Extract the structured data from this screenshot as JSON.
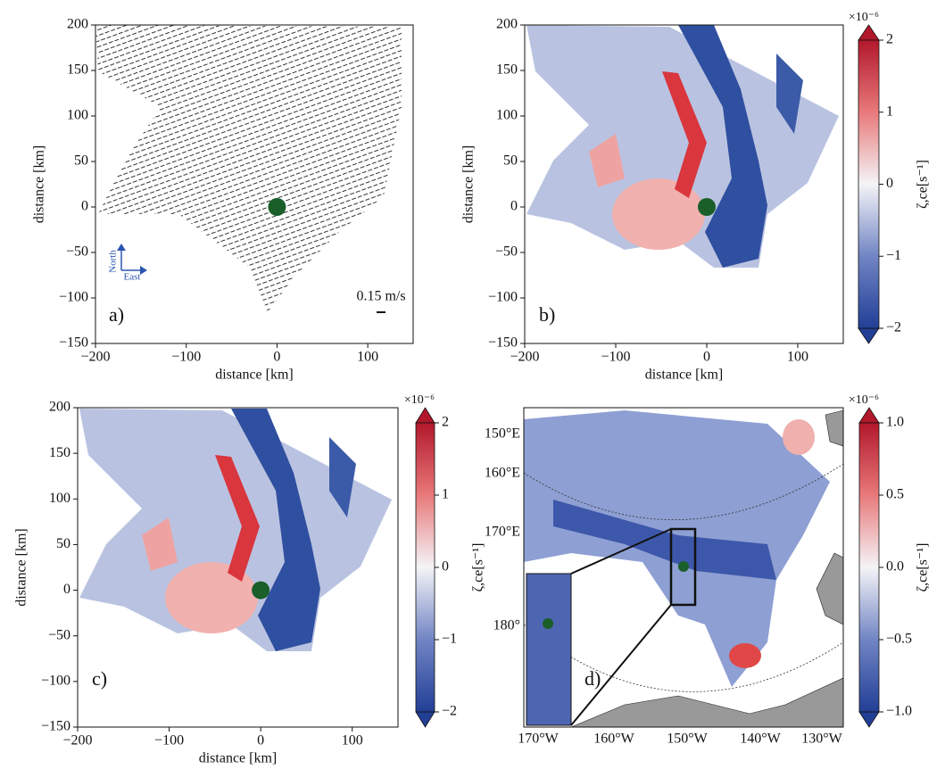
{
  "chart_data": [
    {
      "type": "quiver",
      "panel_label": "a)",
      "xlabel": "distance [km]",
      "ylabel": "distance [km]",
      "xlim": [
        -200,
        150
      ],
      "ylim": [
        -150,
        200
      ],
      "xticks": [
        {
          "value": -200,
          "label": "−200"
        },
        {
          "value": -100,
          "label": "−100"
        },
        0,
        100
      ],
      "yticks": [
        {
          "value": -150,
          "label": "−150"
        },
        {
          "value": -100,
          "label": "−100"
        },
        {
          "value": -50,
          "label": "−50"
        },
        0,
        50,
        100,
        150,
        200
      ],
      "marker": [
        0,
        0
      ],
      "marker_color": "#1a5e2a",
      "annotations": {
        "scale": "0.15 m/s",
        "north": "North",
        "east": "East"
      }
    },
    {
      "type": "heatmap",
      "panel_label": "b)",
      "xlabel": "distance [km]",
      "ylabel": "distance [km]",
      "xlim": [
        -200,
        150
      ],
      "ylim": [
        -150,
        200
      ],
      "xticks": [
        {
          "value": -200,
          "label": "−200"
        },
        {
          "value": -100,
          "label": "−100"
        },
        0,
        100
      ],
      "yticks": [
        {
          "value": -150,
          "label": "−150"
        },
        {
          "value": -100,
          "label": "−100"
        },
        {
          "value": -50,
          "label": "−50"
        },
        0,
        50,
        100,
        150,
        200
      ],
      "marker": [
        0,
        0
      ],
      "marker_color": "#1a5e2a",
      "colorbar": {
        "label": "ζ,ce[s⁻¹]",
        "exponent": "×10⁻⁶",
        "lim": [
          -2,
          2
        ],
        "ticks": [
          {
            "value": -2,
            "label": "−2"
          },
          {
            "value": -1,
            "label": "−1"
          },
          0,
          1,
          2
        ]
      }
    },
    {
      "type": "heatmap",
      "panel_label": "c)",
      "xlabel": "distance [km]",
      "ylabel": "distance [km]",
      "xlim": [
        -200,
        150
      ],
      "ylim": [
        -150,
        200
      ],
      "xticks": [
        {
          "value": -200,
          "label": "−200"
        },
        {
          "value": -100,
          "label": "−100"
        },
        0,
        100
      ],
      "yticks": [
        {
          "value": -150,
          "label": "−150"
        },
        {
          "value": -100,
          "label": "−100"
        },
        {
          "value": -50,
          "label": "−50"
        },
        0,
        50,
        100,
        150,
        200
      ],
      "marker": [
        0,
        0
      ],
      "marker_color": "#1a5e2a",
      "colorbar": {
        "label": "ζ,ce[s⁻¹]",
        "exponent": "×10⁻⁶",
        "lim": [
          -2,
          2
        ],
        "ticks": [
          {
            "value": -2,
            "label": "−2"
          },
          {
            "value": -1,
            "label": "−1"
          },
          0,
          1,
          2
        ]
      }
    },
    {
      "type": "map",
      "panel_label": "d)",
      "lon_labels": [
        "170°W",
        "160°W",
        "150°W",
        "140°W",
        "130°W"
      ],
      "lat_labels": [
        "150°E",
        "160°E",
        "170°E",
        "180°"
      ],
      "colorbar": {
        "label": "ζ,ce[s⁻¹]",
        "exponent": "×10⁻⁶",
        "lim": [
          -1,
          1
        ],
        "ticks": [
          {
            "value": -1,
            "label": "−1.0"
          },
          {
            "value": -0.5,
            "label": "−0.5"
          },
          {
            "value": 0,
            "label": "0.0"
          },
          {
            "value": 0.5,
            "label": "0.5"
          },
          {
            "value": 1,
            "label": "1.0"
          }
        ]
      }
    }
  ]
}
